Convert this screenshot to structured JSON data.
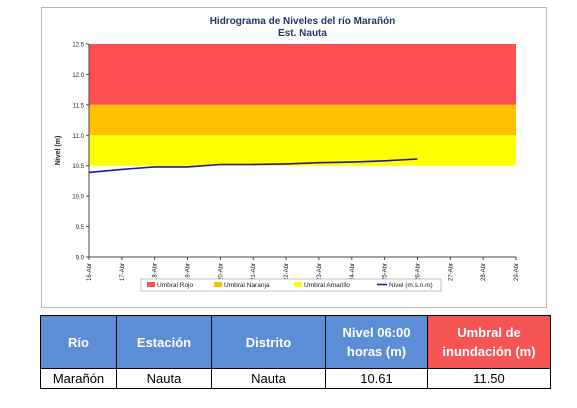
{
  "chart_data": {
    "type": "line",
    "title": "Hidrograma de Niveles del río Marañón",
    "subtitle": "Est. Nauta",
    "ylabel": "Nivel (m)",
    "ylim": [
      9.0,
      12.5
    ],
    "yticks": [
      "9.0",
      "9.5",
      "10.0",
      "10.5",
      "11.0",
      "11.5",
      "12.0",
      "12.5"
    ],
    "categories": [
      "16-Abr",
      "17-Abr",
      "18-Abr",
      "19-Abr",
      "20-Abr",
      "21-Abr",
      "22-Abr",
      "23-Abr",
      "24-Abr",
      "25-Abr",
      "26-Abr",
      "27-Abr",
      "28-Abr",
      "29-Abr"
    ],
    "grid": false,
    "legend_position": "bottom",
    "bands": [
      {
        "name": "Umbral Rojo",
        "from": 11.5,
        "to": 12.5,
        "color": "#ff4f4f"
      },
      {
        "name": "Umbral Naranja",
        "from": 11.0,
        "to": 11.5,
        "color": "#ffc000"
      },
      {
        "name": "Umbral Amarillo",
        "from": 10.5,
        "to": 11.0,
        "color": "#ffff00"
      }
    ],
    "series": [
      {
        "name": "Nivel (m.s.n.m)",
        "color": "#1a1aa6",
        "values": [
          10.39,
          10.44,
          10.48,
          10.48,
          10.52,
          10.52,
          10.53,
          10.55,
          10.56,
          10.58,
          10.61,
          null,
          null,
          null
        ]
      }
    ]
  },
  "table": {
    "headers": [
      "Río",
      "Estación",
      "Distrito",
      "Nivel 06:00 horas (m)",
      "Umbral de inundación (m)"
    ],
    "row": [
      "Marañón",
      "Nauta",
      "Nauta",
      "10.61",
      "11.50"
    ]
  }
}
